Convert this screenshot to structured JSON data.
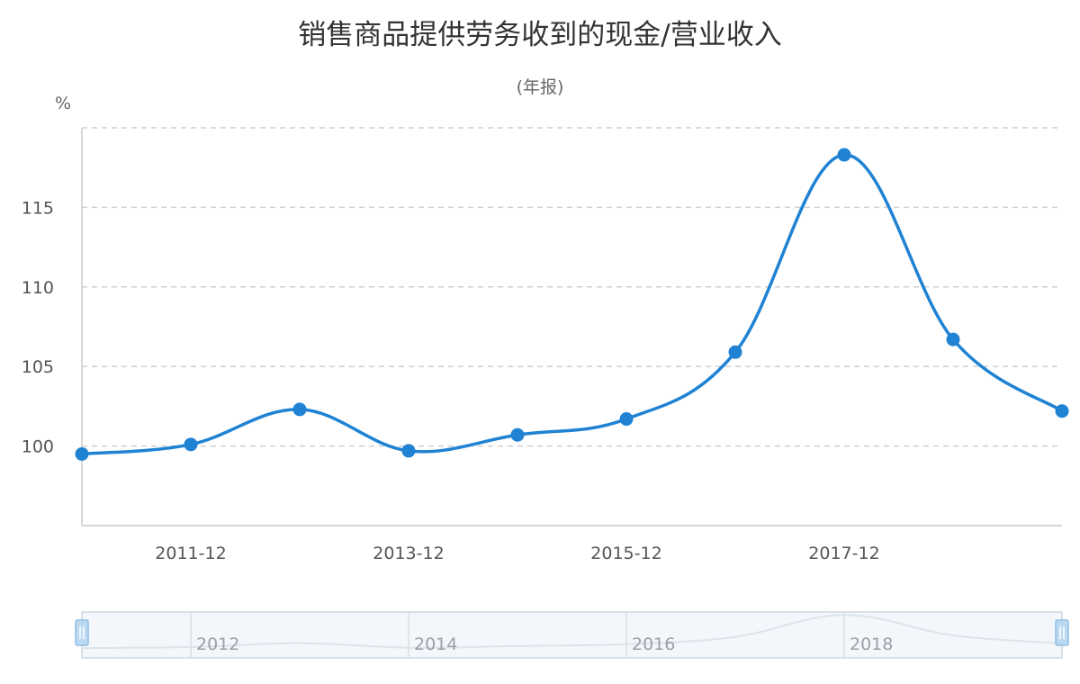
{
  "chart_data": {
    "type": "line",
    "title": "销售商品提供劳务收到的现金/营业收入",
    "subtitle": "(年报)",
    "ylabel": "%",
    "x": [
      "2010-12",
      "2011-12",
      "2012-12",
      "2013-12",
      "2014-12",
      "2015-12",
      "2016-12",
      "2017-12",
      "2018-12",
      "2019-12"
    ],
    "values": [
      99.5,
      100.1,
      102.3,
      99.7,
      100.7,
      101.7,
      105.9,
      118.3,
      106.7,
      102.2
    ],
    "x_tick_labels": [
      "2011-12",
      "2013-12",
      "2015-12",
      "2017-12"
    ],
    "ylim": [
      95,
      120
    ],
    "y_ticks": [
      100,
      105,
      110,
      115
    ],
    "grid": true,
    "series_color": "#1f82d2",
    "navigator": {
      "labels": [
        "2012",
        "2014",
        "2016",
        "2018"
      ]
    }
  }
}
